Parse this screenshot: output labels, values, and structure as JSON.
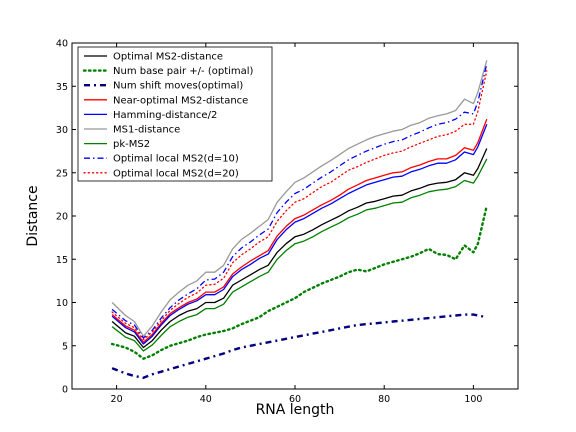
{
  "chart_data": {
    "type": "line",
    "title": "",
    "xlabel": "RNA length",
    "ylabel": "Distance",
    "xlim": [
      10,
      110
    ],
    "ylim": [
      0,
      40
    ],
    "xticks": [
      20,
      40,
      60,
      80,
      100
    ],
    "yticks": [
      0,
      5,
      10,
      15,
      20,
      25,
      30,
      35,
      40
    ],
    "grid": false,
    "legend_position": "top-left",
    "x": [
      19,
      22,
      24,
      26,
      28,
      30,
      32,
      34,
      36,
      38,
      40,
      42,
      44,
      46,
      48,
      50,
      52,
      54,
      56,
      58,
      60,
      62,
      64,
      66,
      68,
      70,
      72,
      74,
      76,
      78,
      80,
      82,
      84,
      86,
      88,
      90,
      92,
      94,
      96,
      98,
      100,
      101,
      103
    ],
    "series": [
      {
        "name": "Optimal MS2-distance",
        "color": "#000000",
        "style": "solid",
        "values": [
          7.8,
          6.5,
          6.1,
          4.8,
          5.6,
          6.8,
          7.8,
          8.5,
          9.0,
          9.3,
          10.0,
          10.0,
          10.5,
          12.0,
          12.6,
          13.2,
          13.8,
          14.3,
          15.8,
          16.8,
          17.6,
          17.9,
          18.4,
          19.0,
          19.5,
          20.0,
          20.6,
          21.0,
          21.5,
          21.7,
          22.0,
          22.3,
          22.4,
          22.9,
          23.2,
          23.6,
          23.8,
          23.9,
          24.2,
          25.0,
          24.7,
          25.5,
          27.8
        ]
      },
      {
        "name": "Num base pair +/- (optimal)",
        "color": "#008000",
        "style": "dotted-thick",
        "values": [
          5.2,
          4.8,
          4.3,
          3.5,
          3.9,
          4.5,
          5.0,
          5.3,
          5.6,
          6.0,
          6.3,
          6.5,
          6.7,
          7.0,
          7.5,
          7.9,
          8.3,
          9.0,
          9.5,
          10.0,
          10.5,
          11.2,
          11.7,
          12.2,
          12.6,
          13.0,
          13.5,
          13.8,
          13.6,
          14.0,
          14.4,
          14.7,
          15.0,
          15.3,
          15.7,
          16.2,
          15.6,
          15.5,
          15.0,
          16.6,
          15.8,
          16.8,
          21.2
        ]
      },
      {
        "name": "Num shift moves(optimal)",
        "color": "#000080",
        "style": "dashdot-thick",
        "values": [
          2.4,
          1.8,
          1.5,
          1.3,
          1.7,
          2.0,
          2.3,
          2.6,
          2.9,
          3.2,
          3.5,
          3.8,
          4.1,
          4.5,
          4.8,
          5.0,
          5.2,
          5.4,
          5.6,
          5.8,
          6.0,
          6.2,
          6.4,
          6.6,
          6.8,
          7.0,
          7.2,
          7.4,
          7.5,
          7.6,
          7.7,
          7.8,
          7.9,
          8.0,
          8.1,
          8.2,
          8.3,
          8.4,
          8.5,
          8.6,
          8.6,
          8.5,
          8.3
        ]
      },
      {
        "name": "Near-optimal MS2-distance",
        "color": "#ff0000",
        "style": "solid",
        "values": [
          8.6,
          7.3,
          6.8,
          5.4,
          6.3,
          7.6,
          8.7,
          9.4,
          10.0,
          10.4,
          11.2,
          11.2,
          11.8,
          13.3,
          14.1,
          14.8,
          15.4,
          16.0,
          17.7,
          18.8,
          19.7,
          20.1,
          20.7,
          21.3,
          21.8,
          22.4,
          23.1,
          23.6,
          24.1,
          24.4,
          24.7,
          25.0,
          25.1,
          25.6,
          25.9,
          26.3,
          26.6,
          26.6,
          27.0,
          27.9,
          27.6,
          28.5,
          31.2
        ]
      },
      {
        "name": "Hamming-distance/2",
        "color": "#0000ff",
        "style": "solid",
        "values": [
          8.4,
          7.1,
          6.6,
          5.2,
          6.1,
          7.4,
          8.5,
          9.2,
          9.8,
          10.2,
          10.9,
          10.9,
          11.5,
          13.0,
          13.8,
          14.4,
          15.1,
          15.6,
          17.3,
          18.4,
          19.3,
          19.7,
          20.3,
          20.9,
          21.4,
          22.0,
          22.6,
          23.1,
          23.6,
          23.9,
          24.2,
          24.5,
          24.6,
          25.1,
          25.4,
          25.8,
          26.1,
          26.1,
          26.5,
          27.4,
          27.1,
          28.0,
          30.6
        ]
      },
      {
        "name": "MS1-distance",
        "color": "#999999",
        "style": "solid",
        "values": [
          10.0,
          8.5,
          7.8,
          6.1,
          7.3,
          8.9,
          10.3,
          11.2,
          12.0,
          12.5,
          13.5,
          13.5,
          14.3,
          16.2,
          17.3,
          18.0,
          18.8,
          19.6,
          21.6,
          22.8,
          23.9,
          24.4,
          25.1,
          25.8,
          26.4,
          27.1,
          27.8,
          28.3,
          28.8,
          29.2,
          29.5,
          29.8,
          30.0,
          30.5,
          30.8,
          31.3,
          31.6,
          31.8,
          32.2,
          33.5,
          33.0,
          34.3,
          38.0
        ]
      },
      {
        "name": "pk-MS2",
        "color": "#008000",
        "style": "solid",
        "values": [
          7.2,
          6.0,
          5.6,
          4.4,
          5.1,
          6.2,
          7.2,
          7.8,
          8.3,
          8.6,
          9.3,
          9.3,
          9.8,
          11.2,
          11.8,
          12.4,
          13.0,
          13.5,
          15.0,
          16.0,
          16.8,
          17.1,
          17.6,
          18.2,
          18.7,
          19.2,
          19.8,
          20.2,
          20.7,
          20.9,
          21.2,
          21.5,
          21.6,
          22.1,
          22.4,
          22.8,
          23.0,
          23.1,
          23.4,
          24.1,
          23.8,
          24.6,
          26.6
        ]
      },
      {
        "name": "Optimal local MS2(d=10)",
        "color": "#0000ff",
        "style": "dashdot",
        "values": [
          9.2,
          7.9,
          7.4,
          5.9,
          6.8,
          8.2,
          9.4,
          10.3,
          11.0,
          11.6,
          12.6,
          12.7,
          13.5,
          15.3,
          16.3,
          17.0,
          17.8,
          18.5,
          20.4,
          21.6,
          22.6,
          23.1,
          23.8,
          24.5,
          25.1,
          25.8,
          26.5,
          27.0,
          27.5,
          27.9,
          28.3,
          28.6,
          28.8,
          29.3,
          29.7,
          30.2,
          30.6,
          30.8,
          31.2,
          32.0,
          31.8,
          33.2,
          37.6
        ]
      },
      {
        "name": "Optimal local MS2(d=20)",
        "color": "#ff0000",
        "style": "dotted",
        "values": [
          8.9,
          7.6,
          7.1,
          5.7,
          6.6,
          7.9,
          9.1,
          9.9,
          10.6,
          11.1,
          12.0,
          12.1,
          12.8,
          14.6,
          15.5,
          16.2,
          17.0,
          17.6,
          19.4,
          20.6,
          21.6,
          22.0,
          22.7,
          23.4,
          23.9,
          24.6,
          25.3,
          25.7,
          26.2,
          26.6,
          27.0,
          27.3,
          27.5,
          28.0,
          28.4,
          28.8,
          29.2,
          29.4,
          29.8,
          30.6,
          30.6,
          32.1,
          36.8
        ]
      }
    ]
  }
}
